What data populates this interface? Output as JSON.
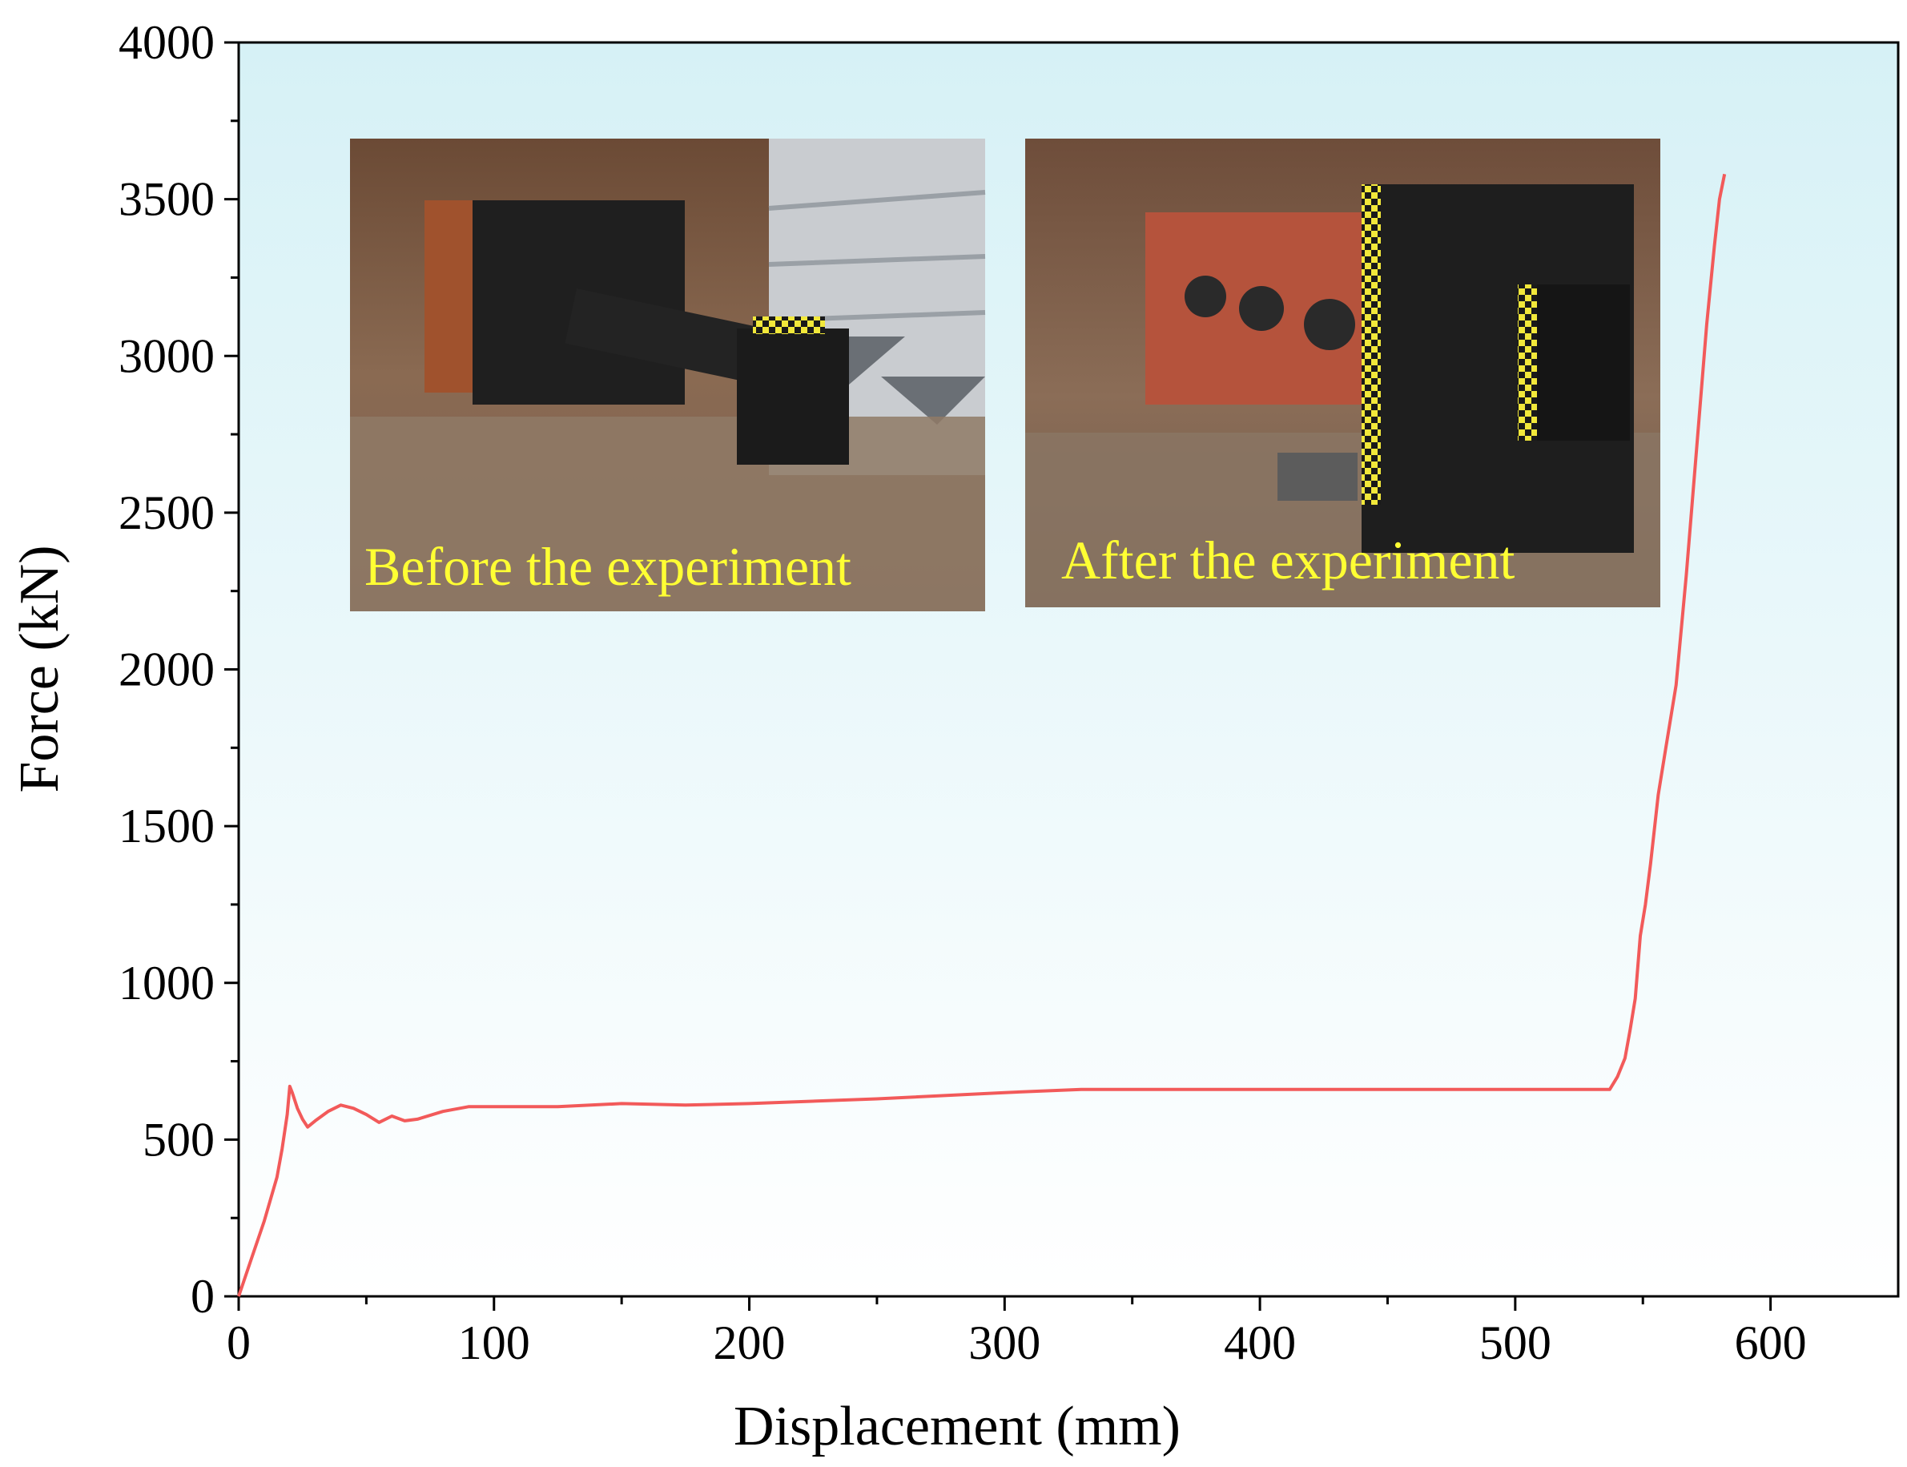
{
  "chart_data": {
    "type": "line",
    "xlabel": "Displacement (mm)",
    "ylabel": "Force (kN)",
    "xlim": [
      0,
      650
    ],
    "ylim": [
      0,
      4000
    ],
    "x_ticks": [
      0,
      100,
      200,
      300,
      400,
      500,
      600
    ],
    "y_ticks": [
      0,
      500,
      1000,
      1500,
      2000,
      2500,
      3000,
      3500,
      4000
    ],
    "grid": false,
    "legend": "none",
    "background": "light cyan to white vertical gradient",
    "series": [
      {
        "color": "#f25a5a",
        "x": [
          0,
          5,
          10,
          15,
          17,
          19,
          20,
          21,
          23,
          25,
          27,
          30,
          35,
          40,
          45,
          50,
          55,
          60,
          65,
          70,
          80,
          90,
          100,
          125,
          150,
          175,
          200,
          250,
          300,
          330,
          400,
          450,
          500,
          537,
          540,
          543,
          545,
          547,
          549,
          551,
          553,
          556,
          559,
          563,
          567,
          571,
          575,
          578,
          580,
          582
        ],
        "y": [
          0,
          120,
          240,
          380,
          470,
          580,
          670,
          650,
          600,
          565,
          540,
          560,
          590,
          610,
          600,
          580,
          555,
          575,
          560,
          565,
          590,
          605,
          605,
          605,
          615,
          610,
          615,
          630,
          650,
          660,
          660,
          660,
          660,
          660,
          700,
          760,
          850,
          950,
          1150,
          1250,
          1380,
          1600,
          1750,
          1950,
          2300,
          2700,
          3100,
          3350,
          3500,
          3580
        ]
      }
    ]
  },
  "insets": [
    {
      "caption": "Before the experiment",
      "icon": "photo-test-setup-before"
    },
    {
      "caption": "After the experiment",
      "icon": "photo-test-setup-after"
    }
  ]
}
